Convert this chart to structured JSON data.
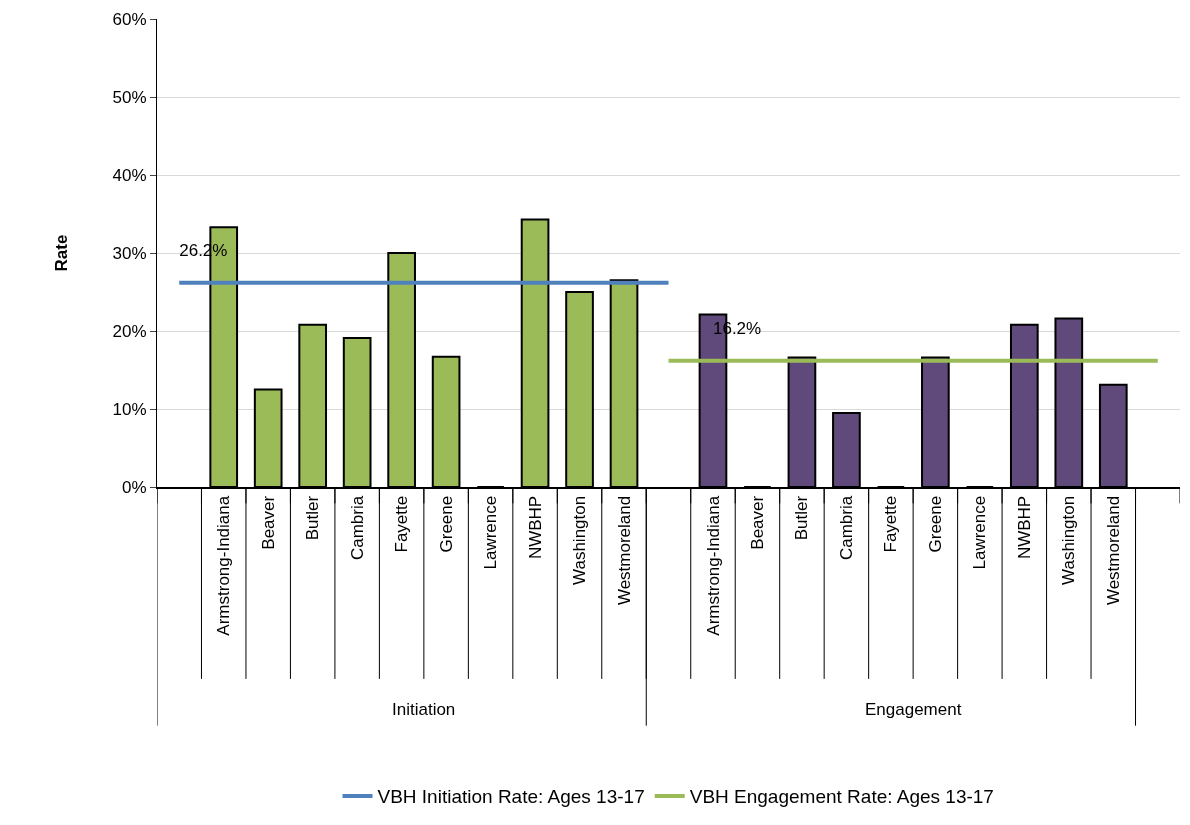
{
  "chart_data": {
    "type": "bar",
    "ylabel": "Rate",
    "categories": [
      null,
      "Armstrong-Indiana",
      "Beaver",
      "Butler",
      "Cambria",
      "Fayette",
      "Greene",
      "Lawrence",
      "NWBHP",
      "Washington",
      "Westmoreland",
      null,
      "Armstrong-Indiana",
      "Beaver",
      "Butler",
      "Cambria",
      "Fayette",
      "Greene",
      "Lawrence",
      "NWBHP",
      "Washington",
      "Westmoreland",
      null
    ],
    "series": [
      {
        "color": "#9bbb59",
        "values": [
          null,
          33.3,
          12.5,
          20.8,
          19.1,
          30.0,
          16.7,
          0,
          34.3,
          25.0,
          26.5,
          null,
          null,
          null,
          null,
          null,
          null,
          null,
          null,
          null,
          null,
          null,
          null
        ]
      },
      {
        "color": "#604a7b",
        "values": [
          null,
          null,
          null,
          null,
          null,
          null,
          null,
          null,
          null,
          null,
          null,
          null,
          22.1,
          0,
          16.6,
          9.5,
          0,
          16.6,
          0,
          20.8,
          21.6,
          13.1,
          null
        ]
      },
      {
        "type": "line",
        "name": "VBH Initiation Rate: Ages 13-17",
        "color": "#4f81bd",
        "values": [
          26.2,
          26.2,
          26.2,
          26.2,
          26.2,
          26.2,
          26.2,
          26.2,
          26.2,
          26.2,
          26.2,
          26.2,
          null,
          null,
          null,
          null,
          null,
          null,
          null,
          null,
          null,
          null,
          null
        ],
        "value_labels": [
          "26.2%",
          null,
          null,
          null,
          null,
          null,
          null,
          null,
          null,
          null,
          null,
          null,
          null,
          null,
          null,
          null,
          null,
          null,
          null,
          null,
          null,
          null,
          null
        ]
      },
      {
        "type": "line",
        "name": "VBH Engagement Rate: Ages 13-17",
        "color": "#9bbb59",
        "values": [
          null,
          null,
          null,
          null,
          null,
          null,
          null,
          null,
          null,
          null,
          null,
          16.2,
          16.2,
          16.2,
          16.2,
          16.2,
          16.2,
          16.2,
          16.2,
          16.2,
          16.2,
          16.2,
          16.2
        ],
        "value_labels": [
          null,
          null,
          null,
          null,
          null,
          null,
          null,
          null,
          null,
          null,
          null,
          null,
          "16.2%",
          null,
          null,
          null,
          null,
          null,
          null,
          null,
          null,
          null,
          null
        ]
      }
    ],
    "annotations": [
      "Initiation",
      "Engagement"
    ],
    "ylim": [
      0,
      60
    ],
    "yticks": [
      {
        "value": 0,
        "label": "0%"
      },
      {
        "value": 10,
        "label": "10%"
      },
      {
        "value": 20,
        "label": "20%"
      },
      {
        "value": 30,
        "label": "30%"
      },
      {
        "value": 40,
        "label": "40%"
      },
      {
        "value": 50,
        "label": "50%"
      },
      {
        "value": 60,
        "label": "60%"
      }
    ],
    "grid": "y",
    "legend": "bottom",
    "marker": "none",
    "line_style": "solid"
  }
}
